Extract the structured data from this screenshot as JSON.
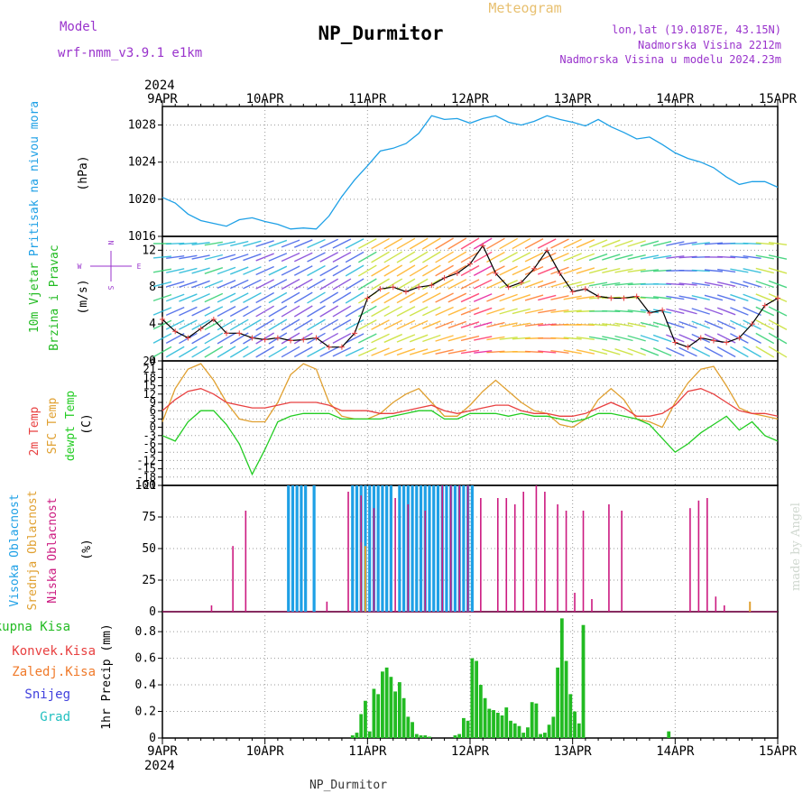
{
  "header": {
    "model_label": "Model",
    "model_name": "wrf-nmm_v3.9.1 e1km",
    "station": "NP_Durmitor",
    "meteogram_label": "Meteogram",
    "coords": "lon,lat (19.0187E, 43.15N)",
    "altitude": "Nadmorska Visina 2212m",
    "model_altitude": "Nadmorska Visina u modelu 2024.23m",
    "footer_station": "NP_Durmitor",
    "credit": "made by Angel"
  },
  "time_axis": {
    "year": "2024",
    "day_labels": [
      "9APR",
      "10APR",
      "11APR",
      "12APR",
      "13APR",
      "14APR",
      "15APR"
    ],
    "start": "2024-04-09T00",
    "end": "2024-04-15T00"
  },
  "colors": {
    "pressure": "#1ea0e6",
    "wind_axis_label": "#22bb22",
    "compass": "#9933cc",
    "temp2m": "#e84040",
    "sfc_temp": "#e0a030",
    "dewpt": "#22cc22",
    "cloud_high": "#1ea0e6",
    "cloud_mid": "#e0a030",
    "cloud_low": "#cc1a80",
    "rain_total": "#22bb22",
    "rain_conv": "#e84040",
    "rain_frozen": "#f07a2a",
    "snow": "#4040dd",
    "graupel": "#22c0c0"
  },
  "panels": {
    "pressure": {
      "label": "Pritisak na nivou mora",
      "unit": "(hPa)",
      "ticks": [
        "1016",
        "1020",
        "1024",
        "1028"
      ]
    },
    "wind": {
      "label1": "10m Vjetar",
      "label2": "Brzina i Pravac",
      "unit": "(m/s)",
      "ticks": [
        "0",
        "4",
        "8",
        "12"
      ],
      "compass_n": "N",
      "compass_s": "S",
      "compass_e": "E",
      "compass_w": "W"
    },
    "temp": {
      "label_2m": "2m Temp",
      "label_sfc": "SFC Temp",
      "label_dew": "dewpt Temp",
      "unit": "(C)",
      "ticks": [
        "24",
        "21",
        "18",
        "15",
        "12",
        "9",
        "6",
        "3",
        "0",
        "-3",
        "-6",
        "-9",
        "-12",
        "-15",
        "-18",
        "-21"
      ]
    },
    "cloud": {
      "label_high": "Visoka Oblacnost",
      "label_mid": "Srednja Oblacnost",
      "label_low": "Niska Oblacnost",
      "unit": "(%)",
      "ticks": [
        "0",
        "25",
        "50",
        "75",
        "100"
      ]
    },
    "precip": {
      "label_total": "Ukupna Kisa",
      "label_conv": "Konvek.Kisa",
      "label_frozen": "Zaledj.Kisa",
      "label_snow": "Snijeg",
      "label_grad": "Grad",
      "unit": "1hr Precip (mm)",
      "ticks": [
        "0",
        "0.2",
        "0.4",
        "0.6",
        "0.8"
      ]
    }
  },
  "chart_data": [
    {
      "type": "line",
      "title": "Pritisak na nivou mora",
      "ylabel": "hPa",
      "x_hours": [
        0,
        3,
        6,
        9,
        12,
        15,
        18,
        21,
        24,
        27,
        30,
        33,
        36,
        39,
        42,
        45,
        48,
        51,
        54,
        57,
        60,
        63,
        66,
        69,
        72,
        75,
        78,
        81,
        84,
        87,
        90,
        93,
        96,
        99,
        102,
        105,
        108,
        111,
        114,
        117,
        120,
        123,
        126,
        129,
        132,
        135,
        138,
        141,
        144
      ],
      "ylim": [
        1016,
        1030
      ],
      "series": [
        {
          "values": [
            1020.2,
            1019.6,
            1018.4,
            1017.7,
            1017.4,
            1017.1,
            1017.8,
            1018.0,
            1017.6,
            1017.3,
            1016.8,
            1016.9,
            1016.8,
            1018.2,
            1020.3,
            1022.1,
            1023.6,
            1025.2,
            1025.5,
            1026.0,
            1027.1,
            1029.0,
            1028.6,
            1028.7,
            1028.2,
            1028.7,
            1029.0,
            1028.3,
            1028.0,
            1028.4,
            1029.0,
            1028.6,
            1028.3,
            1027.9,
            1028.6,
            1027.8,
            1027.2,
            1026.5,
            1026.7,
            1025.9,
            1025.0,
            1024.4,
            1024.0,
            1023.4,
            1022.4,
            1021.6,
            1021.9,
            1021.9,
            1021.3
          ]
        }
      ]
    },
    {
      "type": "line",
      "title": "10m Vjetar Brzina i Pravac",
      "ylabel": "m/s",
      "x_hours": [
        0,
        3,
        6,
        9,
        12,
        15,
        18,
        21,
        24,
        27,
        30,
        33,
        36,
        39,
        42,
        45,
        48,
        51,
        54,
        57,
        60,
        63,
        66,
        69,
        72,
        75,
        78,
        81,
        84,
        87,
        90,
        93,
        96,
        99,
        102,
        105,
        108,
        111,
        114,
        117,
        120,
        123,
        126,
        129,
        132,
        135,
        138,
        141,
        144
      ],
      "ylim": [
        0,
        13.5
      ],
      "series": [
        {
          "values": [
            4.5,
            3.2,
            2.5,
            3.5,
            4.5,
            3.0,
            3.0,
            2.5,
            2.3,
            2.5,
            2.2,
            2.3,
            2.5,
            1.5,
            1.5,
            3.0,
            6.8,
            7.8,
            8.0,
            7.5,
            8.0,
            8.2,
            9.0,
            9.5,
            10.5,
            12.5,
            9.5,
            8.0,
            8.5,
            10.0,
            12.0,
            9.5,
            7.5,
            7.8,
            7.0,
            6.8,
            6.8,
            7.0,
            5.2,
            5.5,
            2.0,
            1.5,
            2.5,
            2.2,
            2.0,
            2.5,
            4.0,
            6.0,
            6.8
          ]
        }
      ]
    },
    {
      "type": "line",
      "title": "Temperature",
      "ylabel": "C",
      "x_hours": [
        0,
        3,
        6,
        9,
        12,
        15,
        18,
        21,
        24,
        27,
        30,
        33,
        36,
        39,
        42,
        45,
        48,
        51,
        54,
        57,
        60,
        63,
        66,
        69,
        72,
        75,
        78,
        81,
        84,
        87,
        90,
        93,
        96,
        99,
        102,
        105,
        108,
        111,
        114,
        117,
        120,
        123,
        126,
        129,
        132,
        135,
        138,
        141,
        144
      ],
      "ylim": [
        -21,
        24
      ],
      "series": [
        {
          "name": "2m Temp",
          "values": [
            6,
            10,
            13,
            14,
            12,
            9,
            8,
            7,
            7,
            8,
            9,
            9,
            9,
            8,
            6,
            6,
            6,
            5,
            5,
            6,
            7,
            8,
            6,
            5,
            6,
            7,
            8,
            8,
            6,
            5,
            5,
            4,
            4,
            5,
            7,
            9,
            7,
            4,
            4,
            5,
            8,
            13,
            14,
            12,
            9,
            6,
            5,
            5,
            4
          ]
        },
        {
          "name": "SFC Temp",
          "values": [
            2,
            14,
            21,
            23,
            17,
            9,
            3,
            2,
            2,
            9,
            19,
            23,
            21,
            9,
            4,
            3,
            3,
            5,
            9,
            12,
            14,
            9,
            4,
            4,
            8,
            13,
            17,
            13,
            9,
            6,
            5,
            1,
            0,
            3,
            10,
            14,
            10,
            3,
            2,
            0,
            9,
            16,
            21,
            22,
            15,
            7,
            5,
            4,
            3
          ]
        },
        {
          "name": "dewpt Temp",
          "values": [
            -3,
            -5,
            2,
            6,
            6,
            1,
            -6,
            -17,
            -8,
            2,
            4,
            5,
            5,
            5,
            3,
            3,
            3,
            3,
            4,
            5,
            6,
            6,
            3,
            3,
            5,
            5,
            5,
            4,
            5,
            4,
            4,
            3,
            2,
            3,
            5,
            5,
            4,
            3,
            1,
            -4,
            -9,
            -6,
            -2,
            1,
            4,
            -1,
            2,
            -3,
            -5
          ]
        }
      ]
    },
    {
      "type": "bar",
      "title": "Oblacnost",
      "ylabel": "%",
      "ylim": [
        0,
        100
      ],
      "series": [
        {
          "name": "Visoka Oblacnost",
          "x_hours": [
            29.5,
            30.5,
            31.5,
            32.5,
            33.5,
            35.5,
            44.5,
            45.5,
            46.5,
            47.5,
            48.5,
            49.5,
            50.5,
            51.5,
            52.5,
            53.5,
            55.5,
            56.5,
            57.5,
            58.5,
            59.5,
            60.5,
            61.5,
            62.5,
            63.5,
            64.5,
            65.5,
            66.5,
            67.5,
            68.5,
            69.5,
            70.5,
            71.5,
            72.5
          ],
          "values": [
            100,
            100,
            100,
            100,
            100,
            100,
            100,
            100,
            100,
            100,
            100,
            100,
            100,
            100,
            100,
            100,
            100,
            100,
            100,
            100,
            100,
            100,
            100,
            100,
            100,
            100,
            100,
            100,
            100,
            100,
            100,
            100,
            100,
            100
          ]
        },
        {
          "name": "Srednja Oblacnost",
          "x_hours": [
            46.5,
            47.5,
            137.5
          ],
          "values": [
            55,
            52,
            8
          ]
        },
        {
          "name": "Niska Oblacnost",
          "x_hours": [
            11.5,
            16.5,
            19.5,
            38.5,
            43.5,
            46.5,
            49.5,
            54.5,
            57.5,
            61.5,
            65.5,
            67.5,
            69.5,
            71.5,
            74.5,
            78.5,
            80.5,
            82.5,
            84.5,
            87.5,
            89.5,
            92.5,
            94.5,
            96.5,
            98.5,
            100.5,
            104.5,
            107.5,
            123.5,
            125.5,
            127.5,
            129.5,
            131.5
          ],
          "values": [
            5,
            52,
            80,
            8,
            95,
            92,
            82,
            90,
            85,
            80,
            100,
            100,
            100,
            100,
            90,
            90,
            90,
            85,
            95,
            100,
            95,
            85,
            80,
            15,
            80,
            10,
            85,
            80,
            82,
            88,
            90,
            12,
            5
          ]
        }
      ]
    },
    {
      "type": "bar",
      "title": "1hr Precip",
      "ylabel": "mm",
      "ylim": [
        0,
        0.95
      ],
      "series": [
        {
          "name": "Ukupna Kisa",
          "x_hours": [
            44.5,
            45.5,
            46.5,
            47.5,
            48.5,
            49.5,
            50.5,
            51.5,
            52.5,
            53.5,
            54.5,
            55.5,
            56.5,
            57.5,
            58.5,
            59.5,
            60.5,
            61.5,
            62.5,
            68.5,
            69.5,
            70.5,
            71.5,
            72.5,
            73.5,
            74.5,
            75.5,
            76.5,
            77.5,
            78.5,
            79.5,
            80.5,
            81.5,
            82.5,
            83.5,
            84.5,
            85.5,
            86.5,
            87.5,
            88.5,
            89.5,
            90.5,
            91.5,
            92.5,
            93.5,
            94.5,
            95.5,
            96.5,
            97.5,
            98.5,
            118.5
          ],
          "values": [
            0.02,
            0.04,
            0.18,
            0.28,
            0.05,
            0.37,
            0.33,
            0.5,
            0.53,
            0.46,
            0.35,
            0.42,
            0.3,
            0.16,
            0.12,
            0.03,
            0.02,
            0.02,
            0.01,
            0.02,
            0.03,
            0.15,
            0.13,
            0.6,
            0.58,
            0.4,
            0.3,
            0.22,
            0.21,
            0.19,
            0.17,
            0.23,
            0.13,
            0.11,
            0.09,
            0.04,
            0.08,
            0.27,
            0.26,
            0.03,
            0.04,
            0.1,
            0.16,
            0.53,
            0.9,
            0.58,
            0.33,
            0.2,
            0.11,
            0.85,
            0.05
          ]
        }
      ]
    }
  ]
}
